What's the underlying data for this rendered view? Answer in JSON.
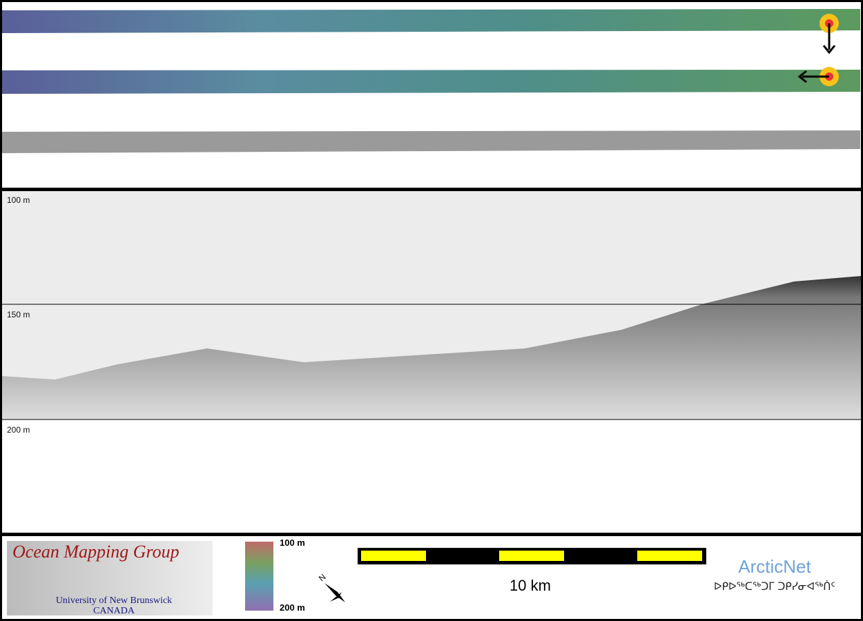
{
  "profile": {
    "depth_labels": [
      "100 m",
      "150 m",
      "200 m"
    ]
  },
  "colorbar": {
    "top_label": "100 m",
    "bottom_label": "200 m"
  },
  "compass": {
    "label": "N"
  },
  "scale_bar": {
    "label": "10 km"
  },
  "logo_omg": {
    "title": "Ocean Mapping Group",
    "line1": "University of New Brunswick",
    "line2": "CANADA"
  },
  "logo_arcticnet": {
    "title": "ArcticNet",
    "subtitle": "ᐅᑭᐅᖅᑕᖅᑐᒥ ᑐᑭᓯᓂᐊᖅᑏᑦ"
  }
}
